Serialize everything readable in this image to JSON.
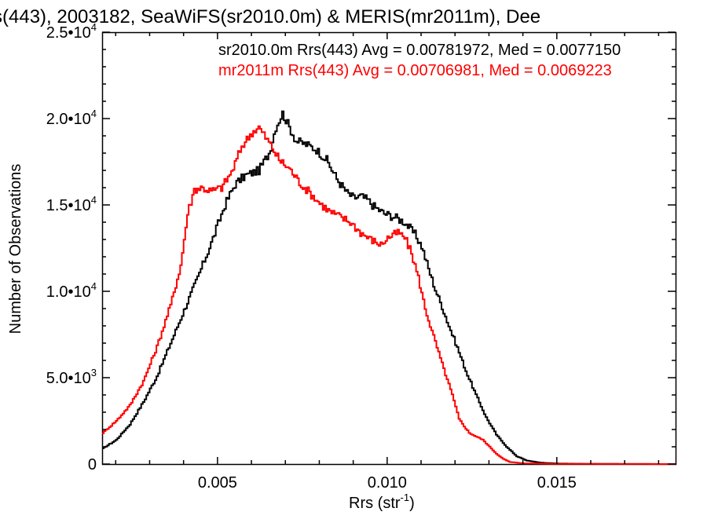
{
  "chart_data": {
    "type": "line",
    "title": "s(443), 2003182, SeaWiFS(sr2010.0m) & MERIS(mr2011m), Dee",
    "xlabel": "Rrs (str",
    "xlabel_sup": "-1",
    "xlabel_close": ")",
    "ylabel": "Number of Observations",
    "xlim": [
      0.0016,
      0.0185
    ],
    "ylim": [
      0,
      25000
    ],
    "grid": false,
    "legend_position": "top-right",
    "x_ticks": [
      {
        "value": 0.005,
        "label": "0.005"
      },
      {
        "value": 0.01,
        "label": "0.010"
      },
      {
        "value": 0.015,
        "label": "0.015"
      }
    ],
    "y_ticks": [
      {
        "value": 0,
        "mant": "0",
        "exp": ""
      },
      {
        "value": 5000,
        "mant": "5.0•10",
        "exp": "3"
      },
      {
        "value": 10000,
        "mant": "1.0•10",
        "exp": "4"
      },
      {
        "value": 15000,
        "mant": "1.5•10",
        "exp": "4"
      },
      {
        "value": 20000,
        "mant": "2.0•10",
        "exp": "4"
      },
      {
        "value": 25000,
        "mant": "2.5•10",
        "exp": "4"
      }
    ],
    "series": [
      {
        "name": "sr2010.0m Rrs(443) Avg = 0.00781972, Med = 0.0077150",
        "color": "#000000",
        "step": 0.0001,
        "points": [
          [
            0.0016,
            900
          ],
          [
            0.002,
            1400
          ],
          [
            0.0024,
            2300
          ],
          [
            0.0028,
            3600
          ],
          [
            0.0032,
            5100
          ],
          [
            0.0036,
            7000
          ],
          [
            0.004,
            8900
          ],
          [
            0.0044,
            10800
          ],
          [
            0.0048,
            12800
          ],
          [
            0.0052,
            15000
          ],
          [
            0.0055,
            16200
          ],
          [
            0.0058,
            16700
          ],
          [
            0.0062,
            17000
          ],
          [
            0.0065,
            18000
          ],
          [
            0.0067,
            19500
          ],
          [
            0.0069,
            20300
          ],
          [
            0.0071,
            19500
          ],
          [
            0.0073,
            18700
          ],
          [
            0.0076,
            18500
          ],
          [
            0.0079,
            18200
          ],
          [
            0.0082,
            17600
          ],
          [
            0.0085,
            16500
          ],
          [
            0.0088,
            15700
          ],
          [
            0.009,
            15400
          ],
          [
            0.0092,
            15500
          ],
          [
            0.0094,
            15300
          ],
          [
            0.0096,
            14900
          ],
          [
            0.0099,
            14500
          ],
          [
            0.0102,
            14300
          ],
          [
            0.0105,
            14000
          ],
          [
            0.0108,
            13300
          ],
          [
            0.011,
            12600
          ],
          [
            0.0112,
            11300
          ],
          [
            0.0114,
            10100
          ],
          [
            0.0116,
            9100
          ],
          [
            0.0118,
            8000
          ],
          [
            0.012,
            7000
          ],
          [
            0.0123,
            5400
          ],
          [
            0.0126,
            4000
          ],
          [
            0.0129,
            2700
          ],
          [
            0.0132,
            1700
          ],
          [
            0.0135,
            1000
          ],
          [
            0.0138,
            450
          ],
          [
            0.0141,
            200
          ],
          [
            0.0145,
            80
          ],
          [
            0.015,
            30
          ],
          [
            0.016,
            10
          ],
          [
            0.0185,
            0
          ]
        ]
      },
      {
        "name": "mr2011m Rrs(443) Avg = 0.00706981, Med = 0.0069223",
        "color": "#ff0000",
        "step": 0.0001,
        "points": [
          [
            0.0016,
            1800
          ],
          [
            0.002,
            2500
          ],
          [
            0.0024,
            3400
          ],
          [
            0.0028,
            4800
          ],
          [
            0.0032,
            6800
          ],
          [
            0.0036,
            9200
          ],
          [
            0.0039,
            11500
          ],
          [
            0.0041,
            14500
          ],
          [
            0.0043,
            15900
          ],
          [
            0.0045,
            16000
          ],
          [
            0.0048,
            15800
          ],
          [
            0.0051,
            16000
          ],
          [
            0.0054,
            16900
          ],
          [
            0.0057,
            18400
          ],
          [
            0.006,
            19200
          ],
          [
            0.0062,
            19500
          ],
          [
            0.0064,
            18900
          ],
          [
            0.0066,
            18300
          ],
          [
            0.0068,
            17600
          ],
          [
            0.0071,
            17100
          ],
          [
            0.0074,
            16300
          ],
          [
            0.0077,
            15700
          ],
          [
            0.008,
            15100
          ],
          [
            0.0083,
            14600
          ],
          [
            0.0086,
            14300
          ],
          [
            0.0089,
            14000
          ],
          [
            0.0092,
            13400
          ],
          [
            0.0095,
            13000
          ],
          [
            0.0098,
            12700
          ],
          [
            0.01,
            13100
          ],
          [
            0.0103,
            13400
          ],
          [
            0.0105,
            13100
          ],
          [
            0.0107,
            12200
          ],
          [
            0.0109,
            10800
          ],
          [
            0.0111,
            9000
          ],
          [
            0.0113,
            7700
          ],
          [
            0.0116,
            5800
          ],
          [
            0.0119,
            4000
          ],
          [
            0.0121,
            2600
          ],
          [
            0.0124,
            1800
          ],
          [
            0.0126,
            1600
          ],
          [
            0.0128,
            1400
          ],
          [
            0.013,
            1000
          ],
          [
            0.0132,
            600
          ],
          [
            0.0134,
            300
          ],
          [
            0.0136,
            120
          ],
          [
            0.014,
            40
          ],
          [
            0.015,
            10
          ],
          [
            0.0185,
            0
          ]
        ]
      }
    ]
  }
}
